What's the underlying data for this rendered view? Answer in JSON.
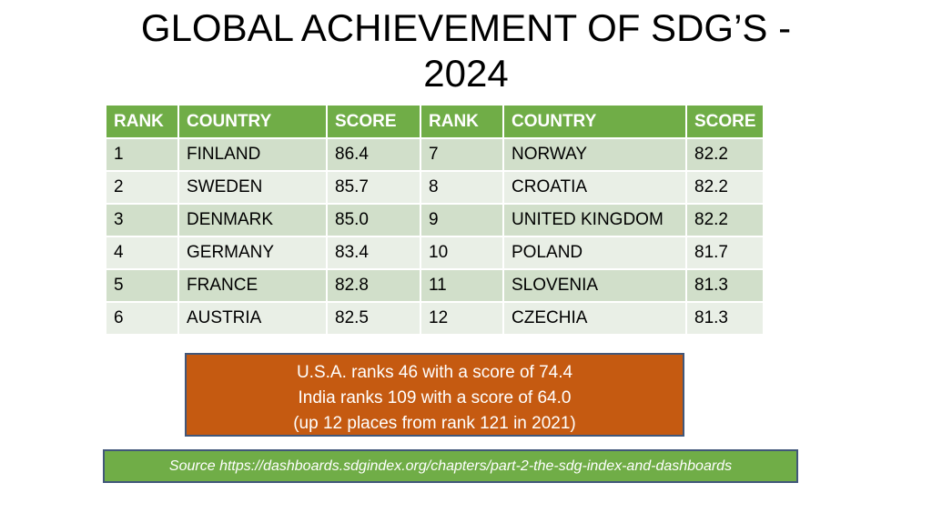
{
  "title": {
    "line1": "GLOBAL ACHIEVEMENT OF SDG’S -",
    "line2": "2024"
  },
  "table": {
    "headers": [
      "RANK",
      "COUNTRY",
      "SCORE",
      "RANK",
      "COUNTRY",
      "SCORE"
    ],
    "rows": [
      [
        "1",
        "FINLAND",
        "86.4",
        "7",
        "NORWAY",
        "82.2"
      ],
      [
        "2",
        "SWEDEN",
        "85.7",
        "8",
        "CROATIA",
        "82.2"
      ],
      [
        "3",
        "DENMARK",
        "85.0",
        "9",
        "UNITED KINGDOM",
        "82.2"
      ],
      [
        "4",
        "GERMANY",
        "83.4",
        "10",
        "POLAND",
        "81.7"
      ],
      [
        "5",
        "FRANCE",
        "82.8",
        "11",
        "SLOVENIA",
        "81.3"
      ],
      [
        "6",
        "AUSTRIA",
        "82.5",
        "12",
        "CZECHIA",
        "81.3"
      ]
    ]
  },
  "note": {
    "line1": "U.S.A. ranks 46 with a score of 74.4",
    "line2": "India ranks 109 with a score of 64.0",
    "line3": "(up 12 places from rank 121 in 2021)"
  },
  "source": {
    "text": "Source https://dashboards.sdgindex.org/chapters/part-2-the-sdg-index-and-dashboards"
  },
  "colors": {
    "header_green": "#70ad47",
    "row_odd": "#d1dfca",
    "row_even": "#e9efe6",
    "note_orange": "#c55a11",
    "box_border": "#41577a"
  }
}
